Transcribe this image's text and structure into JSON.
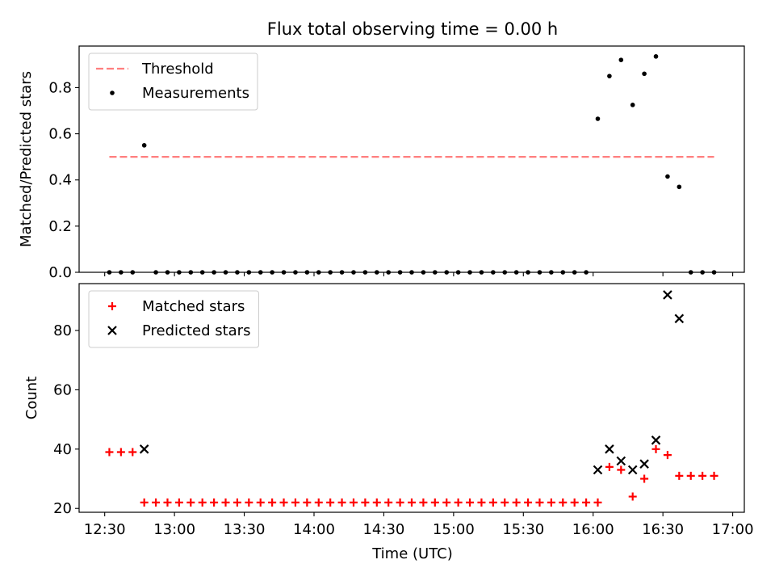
{
  "chart_data": {
    "title": "Flux total observing time = 0.00 h",
    "xlabel": "Time (UTC)",
    "x_ticks": [
      "12:30",
      "13:00",
      "13:30",
      "14:00",
      "14:30",
      "15:00",
      "15:30",
      "16:00",
      "16:30",
      "17:00"
    ],
    "x_tick_minutes": [
      750,
      780,
      810,
      840,
      870,
      900,
      930,
      960,
      990,
      1020
    ],
    "xlim_minutes": [
      739,
      1025
    ],
    "panels": [
      {
        "type": "scatter",
        "ylabel": "Matched/Predicted stars",
        "ylim": [
          0,
          0.98
        ],
        "y_ticks": [
          0.0,
          0.2,
          0.4,
          0.6,
          0.8
        ],
        "y_tick_labels": [
          "0.0",
          "0.2",
          "0.4",
          "0.6",
          "0.8"
        ],
        "grid": false,
        "legend_position": "top-left",
        "threshold": {
          "name": "Threshold",
          "value": 0.5,
          "x_range": [
            752,
            1012
          ],
          "color": "#ff7f7f"
        },
        "series": [
          {
            "name": "Measurements",
            "marker": "dot",
            "color": "#000000",
            "points": [
              [
                752,
                0
              ],
              [
                757,
                0
              ],
              [
                762,
                0
              ],
              [
                767,
                0.55
              ],
              [
                772,
                0
              ],
              [
                777,
                0
              ],
              [
                782,
                0
              ],
              [
                787,
                0
              ],
              [
                792,
                0
              ],
              [
                797,
                0
              ],
              [
                802,
                0
              ],
              [
                807,
                0
              ],
              [
                812,
                0
              ],
              [
                817,
                0
              ],
              [
                822,
                0
              ],
              [
                827,
                0
              ],
              [
                832,
                0
              ],
              [
                837,
                0
              ],
              [
                842,
                0
              ],
              [
                847,
                0
              ],
              [
                852,
                0
              ],
              [
                857,
                0
              ],
              [
                862,
                0
              ],
              [
                867,
                0
              ],
              [
                872,
                0
              ],
              [
                877,
                0
              ],
              [
                882,
                0
              ],
              [
                887,
                0
              ],
              [
                892,
                0
              ],
              [
                897,
                0
              ],
              [
                902,
                0
              ],
              [
                907,
                0
              ],
              [
                912,
                0
              ],
              [
                917,
                0
              ],
              [
                922,
                0
              ],
              [
                927,
                0
              ],
              [
                932,
                0
              ],
              [
                937,
                0
              ],
              [
                942,
                0
              ],
              [
                947,
                0
              ],
              [
                952,
                0
              ],
              [
                957,
                0
              ],
              [
                962,
                0.665
              ],
              [
                967,
                0.85
              ],
              [
                972,
                0.92
              ],
              [
                977,
                0.725
              ],
              [
                982,
                0.86
              ],
              [
                987,
                0.935
              ],
              [
                992,
                0.415
              ],
              [
                997,
                0.37
              ],
              [
                1002,
                0
              ],
              [
                1007,
                0
              ],
              [
                1012,
                0
              ]
            ]
          }
        ]
      },
      {
        "type": "scatter",
        "ylabel": "Count",
        "ylim": [
          18.7,
          95.8
        ],
        "y_ticks": [
          20,
          40,
          60,
          80
        ],
        "y_tick_labels": [
          "20",
          "40",
          "60",
          "80"
        ],
        "grid": false,
        "legend_position": "top-left",
        "series": [
          {
            "name": "Matched stars",
            "marker": "plus",
            "color": "#ff0000",
            "points": [
              [
                752,
                39
              ],
              [
                757,
                39
              ],
              [
                762,
                39
              ],
              [
                767,
                22
              ],
              [
                772,
                22
              ],
              [
                777,
                22
              ],
              [
                782,
                22
              ],
              [
                787,
                22
              ],
              [
                792,
                22
              ],
              [
                797,
                22
              ],
              [
                802,
                22
              ],
              [
                807,
                22
              ],
              [
                812,
                22
              ],
              [
                817,
                22
              ],
              [
                822,
                22
              ],
              [
                827,
                22
              ],
              [
                832,
                22
              ],
              [
                837,
                22
              ],
              [
                842,
                22
              ],
              [
                847,
                22
              ],
              [
                852,
                22
              ],
              [
                857,
                22
              ],
              [
                862,
                22
              ],
              [
                867,
                22
              ],
              [
                872,
                22
              ],
              [
                877,
                22
              ],
              [
                882,
                22
              ],
              [
                887,
                22
              ],
              [
                892,
                22
              ],
              [
                897,
                22
              ],
              [
                902,
                22
              ],
              [
                907,
                22
              ],
              [
                912,
                22
              ],
              [
                917,
                22
              ],
              [
                922,
                22
              ],
              [
                927,
                22
              ],
              [
                932,
                22
              ],
              [
                937,
                22
              ],
              [
                942,
                22
              ],
              [
                947,
                22
              ],
              [
                952,
                22
              ],
              [
                957,
                22
              ],
              [
                962,
                22
              ],
              [
                967,
                34
              ],
              [
                972,
                33
              ],
              [
                977,
                24
              ],
              [
                982,
                30
              ],
              [
                987,
                40
              ],
              [
                992,
                38
              ],
              [
                997,
                31
              ],
              [
                1002,
                31
              ],
              [
                1007,
                31
              ],
              [
                1012,
                31
              ]
            ]
          },
          {
            "name": "Predicted stars",
            "marker": "x",
            "color": "#000000",
            "points": [
              [
                767,
                40
              ],
              [
                962,
                33
              ],
              [
                967,
                40
              ],
              [
                972,
                36
              ],
              [
                977,
                33
              ],
              [
                982,
                35
              ],
              [
                987,
                43
              ],
              [
                992,
                92
              ],
              [
                997,
                84
              ]
            ]
          }
        ]
      }
    ]
  }
}
